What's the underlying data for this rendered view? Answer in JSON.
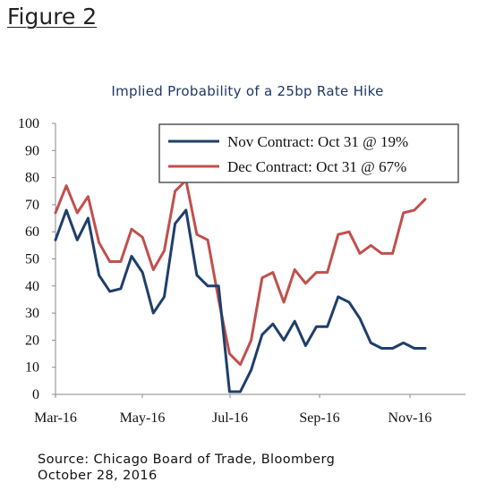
{
  "figure_label": "Figure 2",
  "source": {
    "line1": "Source: Chicago Board of Trade, Bloomberg",
    "line2": "October 28, 2016"
  },
  "chart_data": {
    "type": "line",
    "title": "Implied Probability of a 25bp Rate Hike",
    "xlabel": "",
    "ylabel": "",
    "ylim": [
      0,
      100
    ],
    "yticks": [
      "0",
      "10",
      "20",
      "30",
      "40",
      "50",
      "60",
      "70",
      "80",
      "90",
      "100"
    ],
    "xticks": [
      "Mar-16",
      "May-16",
      "Jul-16",
      "Sep-16",
      "Nov-16"
    ],
    "grid": false,
    "legend_position": "top-right",
    "series": [
      {
        "name": "Nov Contract: Oct 31 @ 19%",
        "color": "#1f3f6b",
        "values": [
          57,
          68,
          57,
          65,
          44,
          38,
          39,
          51,
          45,
          30,
          36,
          63,
          68,
          44,
          40,
          40,
          1,
          1,
          9,
          22,
          26,
          20,
          27,
          18,
          25,
          25,
          36,
          34,
          28,
          19,
          17,
          17,
          19,
          17,
          17
        ]
      },
      {
        "name": "Dec Contract: Oct 31 @ 67%",
        "color": "#c0504d",
        "values": [
          67,
          77,
          67,
          73,
          56,
          49,
          49,
          61,
          58,
          46,
          53,
          75,
          79,
          59,
          57,
          35,
          15,
          11,
          20,
          43,
          45,
          34,
          46,
          41,
          45,
          45,
          59,
          60,
          52,
          55,
          52,
          52,
          67,
          68,
          72
        ]
      }
    ]
  }
}
